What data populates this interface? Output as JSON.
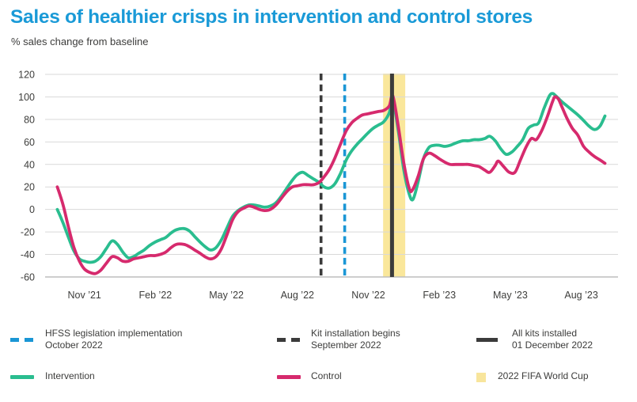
{
  "chart_data": {
    "type": "line",
    "title": "Sales of healthier crisps in intervention and control stores",
    "subtitle": "% sales change from baseline",
    "ylabel": "% sales change from baseline",
    "ylim": [
      -60,
      120
    ],
    "yticks": [
      120,
      100,
      80,
      60,
      40,
      20,
      0,
      -20,
      -40,
      -60
    ],
    "grid": "horizontal",
    "legend_position": "bottom",
    "xticks": [
      {
        "label": "Nov ’21",
        "date": "2021-11-01"
      },
      {
        "label": "Feb ’22",
        "date": "2022-02-01"
      },
      {
        "label": "May ’22",
        "date": "2022-05-01"
      },
      {
        "label": "Aug ’22",
        "date": "2022-08-01"
      },
      {
        "label": "Nov ’22",
        "date": "2022-11-01"
      },
      {
        "label": "Feb ’23",
        "date": "2023-02-01"
      },
      {
        "label": "May ’23",
        "date": "2023-05-01"
      },
      {
        "label": "Aug ’23",
        "date": "2023-08-01"
      }
    ],
    "events": [
      {
        "name": "HFSS legislation implementation",
        "date": "2022-10-01",
        "style": "dashed",
        "color": "#1a96d5"
      },
      {
        "name": "Kit installation begins",
        "date": "2022-09-01",
        "style": "dashed",
        "color": "#3b3b3b"
      },
      {
        "name": "All kits installed",
        "date": "2022-12-01",
        "style": "solid",
        "color": "#3b3b3b"
      }
    ],
    "band": {
      "name": "2022 FIFA World Cup",
      "start": "2022-11-20",
      "end": "2022-12-18",
      "color": "#fae79b"
    },
    "series": [
      {
        "name": "Intervention",
        "color": "#2abd8f",
        "points": [
          [
            "2021-09-27",
            0
          ],
          [
            "2021-10-04",
            -12
          ],
          [
            "2021-10-11",
            -25
          ],
          [
            "2021-10-18",
            -37
          ],
          [
            "2021-10-25",
            -44
          ],
          [
            "2021-11-01",
            -46
          ],
          [
            "2021-11-08",
            -47
          ],
          [
            "2021-11-15",
            -46
          ],
          [
            "2021-11-22",
            -42
          ],
          [
            "2021-11-29",
            -35
          ],
          [
            "2021-12-06",
            -28
          ],
          [
            "2021-12-13",
            -31
          ],
          [
            "2021-12-20",
            -38
          ],
          [
            "2021-12-27",
            -43
          ],
          [
            "2022-01-03",
            -42
          ],
          [
            "2022-01-10",
            -39
          ],
          [
            "2022-01-17",
            -36
          ],
          [
            "2022-01-24",
            -32
          ],
          [
            "2022-01-31",
            -29
          ],
          [
            "2022-02-07",
            -27
          ],
          [
            "2022-02-14",
            -25
          ],
          [
            "2022-02-21",
            -21
          ],
          [
            "2022-02-28",
            -18
          ],
          [
            "2022-03-07",
            -17
          ],
          [
            "2022-03-14",
            -19
          ],
          [
            "2022-03-21",
            -24
          ],
          [
            "2022-03-28",
            -29
          ],
          [
            "2022-04-04",
            -33
          ],
          [
            "2022-04-11",
            -36
          ],
          [
            "2022-04-18",
            -34
          ],
          [
            "2022-04-25",
            -27
          ],
          [
            "2022-05-02",
            -16
          ],
          [
            "2022-05-09",
            -6
          ],
          [
            "2022-05-16",
            -1
          ],
          [
            "2022-05-23",
            2
          ],
          [
            "2022-05-30",
            4
          ],
          [
            "2022-06-06",
            4
          ],
          [
            "2022-06-13",
            3
          ],
          [
            "2022-06-20",
            2
          ],
          [
            "2022-06-27",
            3
          ],
          [
            "2022-07-04",
            6
          ],
          [
            "2022-07-11",
            12
          ],
          [
            "2022-07-18",
            19
          ],
          [
            "2022-07-25",
            26
          ],
          [
            "2022-08-01",
            31
          ],
          [
            "2022-08-08",
            33
          ],
          [
            "2022-08-15",
            30
          ],
          [
            "2022-08-22",
            27
          ],
          [
            "2022-08-29",
            24
          ],
          [
            "2022-09-05",
            20
          ],
          [
            "2022-09-12",
            19
          ],
          [
            "2022-09-19",
            23
          ],
          [
            "2022-09-26",
            32
          ],
          [
            "2022-10-03",
            44
          ],
          [
            "2022-10-10",
            52
          ],
          [
            "2022-10-17",
            58
          ],
          [
            "2022-10-24",
            63
          ],
          [
            "2022-10-31",
            68
          ],
          [
            "2022-11-07",
            72
          ],
          [
            "2022-11-14",
            75
          ],
          [
            "2022-11-21",
            78
          ],
          [
            "2022-11-28",
            86
          ],
          [
            "2022-12-02",
            97
          ],
          [
            "2022-12-09",
            70
          ],
          [
            "2022-12-16",
            36
          ],
          [
            "2022-12-23",
            14
          ],
          [
            "2022-12-28",
            9
          ],
          [
            "2023-01-04",
            24
          ],
          [
            "2023-01-11",
            45
          ],
          [
            "2023-01-18",
            55
          ],
          [
            "2023-01-25",
            57
          ],
          [
            "2023-02-01",
            57
          ],
          [
            "2023-02-08",
            56
          ],
          [
            "2023-02-15",
            57
          ],
          [
            "2023-02-22",
            59
          ],
          [
            "2023-03-01",
            61
          ],
          [
            "2023-03-08",
            61
          ],
          [
            "2023-03-15",
            62
          ],
          [
            "2023-03-22",
            62
          ],
          [
            "2023-03-29",
            63
          ],
          [
            "2023-04-05",
            65
          ],
          [
            "2023-04-12",
            61
          ],
          [
            "2023-04-19",
            54
          ],
          [
            "2023-04-26",
            49
          ],
          [
            "2023-05-03",
            51
          ],
          [
            "2023-05-10",
            56
          ],
          [
            "2023-05-17",
            62
          ],
          [
            "2023-05-24",
            72
          ],
          [
            "2023-05-31",
            75
          ],
          [
            "2023-06-07",
            77
          ],
          [
            "2023-06-14",
            90
          ],
          [
            "2023-06-21",
            101
          ],
          [
            "2023-06-25",
            103
          ],
          [
            "2023-06-29",
            101
          ],
          [
            "2023-07-06",
            96
          ],
          [
            "2023-07-13",
            92
          ],
          [
            "2023-07-20",
            88
          ],
          [
            "2023-07-27",
            84
          ],
          [
            "2023-08-04",
            79
          ],
          [
            "2023-08-11",
            74
          ],
          [
            "2023-08-18",
            71
          ],
          [
            "2023-08-25",
            74
          ],
          [
            "2023-09-01",
            83
          ]
        ]
      },
      {
        "name": "Control",
        "color": "#d62a6d",
        "points": [
          [
            "2021-09-27",
            20
          ],
          [
            "2021-10-04",
            4
          ],
          [
            "2021-10-11",
            -16
          ],
          [
            "2021-10-18",
            -34
          ],
          [
            "2021-10-25",
            -46
          ],
          [
            "2021-11-01",
            -53
          ],
          [
            "2021-11-08",
            -56
          ],
          [
            "2021-11-15",
            -57
          ],
          [
            "2021-11-22",
            -54
          ],
          [
            "2021-11-29",
            -48
          ],
          [
            "2021-12-06",
            -42
          ],
          [
            "2021-12-13",
            -43
          ],
          [
            "2021-12-20",
            -46
          ],
          [
            "2021-12-27",
            -46
          ],
          [
            "2022-01-03",
            -44
          ],
          [
            "2022-01-10",
            -43
          ],
          [
            "2022-01-17",
            -42
          ],
          [
            "2022-01-24",
            -41
          ],
          [
            "2022-01-31",
            -41
          ],
          [
            "2022-02-07",
            -40
          ],
          [
            "2022-02-14",
            -38
          ],
          [
            "2022-02-21",
            -34
          ],
          [
            "2022-02-28",
            -31
          ],
          [
            "2022-03-07",
            -31
          ],
          [
            "2022-03-14",
            -33
          ],
          [
            "2022-03-21",
            -36
          ],
          [
            "2022-03-28",
            -39
          ],
          [
            "2022-04-04",
            -42
          ],
          [
            "2022-04-11",
            -44
          ],
          [
            "2022-04-18",
            -42
          ],
          [
            "2022-04-25",
            -35
          ],
          [
            "2022-05-02",
            -22
          ],
          [
            "2022-05-09",
            -9
          ],
          [
            "2022-05-16",
            -2
          ],
          [
            "2022-05-23",
            1
          ],
          [
            "2022-05-30",
            3
          ],
          [
            "2022-06-06",
            2
          ],
          [
            "2022-06-13",
            0
          ],
          [
            "2022-06-20",
            -1
          ],
          [
            "2022-06-27",
            0
          ],
          [
            "2022-07-04",
            4
          ],
          [
            "2022-07-11",
            10
          ],
          [
            "2022-07-18",
            16
          ],
          [
            "2022-07-25",
            20
          ],
          [
            "2022-08-01",
            21
          ],
          [
            "2022-08-08",
            22
          ],
          [
            "2022-08-15",
            22
          ],
          [
            "2022-08-22",
            22
          ],
          [
            "2022-08-29",
            24
          ],
          [
            "2022-09-05",
            29
          ],
          [
            "2022-09-12",
            36
          ],
          [
            "2022-09-19",
            46
          ],
          [
            "2022-09-26",
            58
          ],
          [
            "2022-10-03",
            70
          ],
          [
            "2022-10-10",
            77
          ],
          [
            "2022-10-17",
            81
          ],
          [
            "2022-10-24",
            84
          ],
          [
            "2022-10-31",
            85
          ],
          [
            "2022-11-07",
            86
          ],
          [
            "2022-11-14",
            87
          ],
          [
            "2022-11-21",
            88
          ],
          [
            "2022-11-28",
            92
          ],
          [
            "2022-12-02",
            101
          ],
          [
            "2022-12-09",
            74
          ],
          [
            "2022-12-16",
            42
          ],
          [
            "2022-12-23",
            19
          ],
          [
            "2022-12-27",
            17
          ],
          [
            "2023-01-04",
            29
          ],
          [
            "2023-01-11",
            45
          ],
          [
            "2023-01-18",
            50
          ],
          [
            "2023-01-25",
            48
          ],
          [
            "2023-02-01",
            45
          ],
          [
            "2023-02-08",
            42
          ],
          [
            "2023-02-15",
            40
          ],
          [
            "2023-02-22",
            40
          ],
          [
            "2023-03-01",
            40
          ],
          [
            "2023-03-08",
            40
          ],
          [
            "2023-03-15",
            39
          ],
          [
            "2023-03-22",
            38
          ],
          [
            "2023-03-29",
            35
          ],
          [
            "2023-04-05",
            33
          ],
          [
            "2023-04-12",
            39
          ],
          [
            "2023-04-16",
            43
          ],
          [
            "2023-04-23",
            38
          ],
          [
            "2023-04-30",
            33
          ],
          [
            "2023-05-07",
            33
          ],
          [
            "2023-05-14",
            44
          ],
          [
            "2023-05-21",
            55
          ],
          [
            "2023-05-28",
            63
          ],
          [
            "2023-06-04",
            62
          ],
          [
            "2023-06-11",
            70
          ],
          [
            "2023-06-18",
            82
          ],
          [
            "2023-06-25",
            96
          ],
          [
            "2023-06-28",
            100
          ],
          [
            "2023-07-02",
            98
          ],
          [
            "2023-07-06",
            92
          ],
          [
            "2023-07-13",
            81
          ],
          [
            "2023-07-20",
            72
          ],
          [
            "2023-07-27",
            66
          ],
          [
            "2023-08-04",
            56
          ],
          [
            "2023-08-11",
            51
          ],
          [
            "2023-08-18",
            47
          ],
          [
            "2023-08-25",
            44
          ],
          [
            "2023-09-01",
            41
          ]
        ]
      }
    ]
  },
  "legend": {
    "hfss": {
      "line1": "HFSS legislation implementation",
      "line2": "October 2022"
    },
    "kit": {
      "line1": "Kit installation begins",
      "line2": "September 2022"
    },
    "allkits": {
      "line1": "All kits installed",
      "line2": "01 December 2022"
    },
    "intervention": "Intervention",
    "control": "Control",
    "worldcup": "2022 FIFA World Cup"
  },
  "colors": {
    "title": "#1a9ad7",
    "intervention": "#2abd8f",
    "control": "#d62a6d",
    "hfss_line": "#1a96d5",
    "dark_line": "#3b3b3b",
    "worldcup_band": "#fae79b",
    "gridline": "#d9d9d9",
    "axis_text": "#3d3d3b"
  }
}
